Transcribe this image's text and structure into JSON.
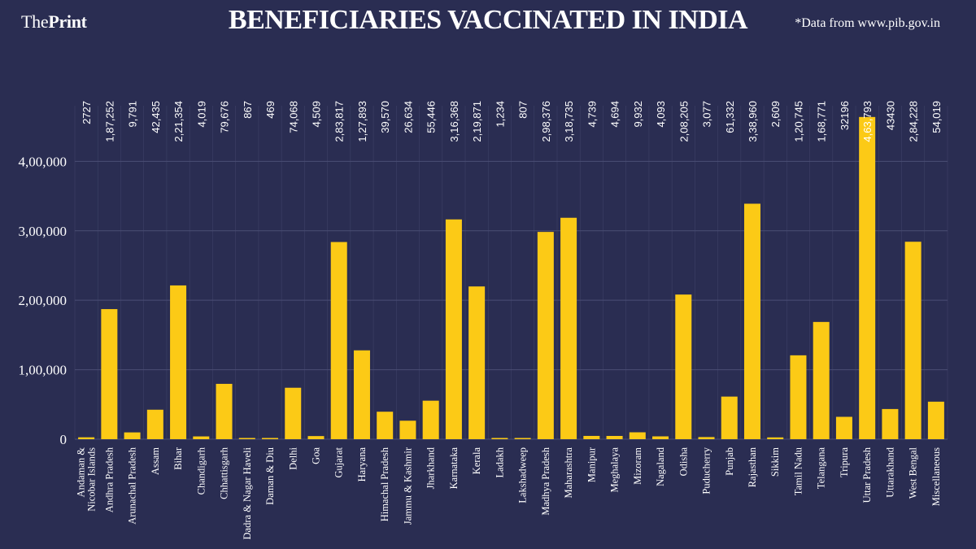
{
  "header": {
    "logo_light": "The",
    "logo_bold": "Print",
    "title": "BENEFICIARIES VACCINATED IN INDIA",
    "source": "*Data from www.pib.gov.in"
  },
  "colors": {
    "background": "#2a2d52",
    "bar": "#fcca16",
    "grid": "#4b4e75",
    "text": "#ffffff"
  },
  "chart_data": {
    "type": "bar",
    "title": "BENEFICIARIES VACCINATED IN INDIA",
    "xlabel": "",
    "ylabel": "",
    "ylim": [
      0,
      480000
    ],
    "yticks": [
      0,
      100000,
      200000,
      300000,
      400000
    ],
    "ytick_labels": [
      "0",
      "1,00,000",
      "2,00,000",
      "3,00,000",
      "4,00,000"
    ],
    "grid": true,
    "categories": [
      [
        "Andaman &",
        "Nicobar Islands"
      ],
      [
        "Andhra Pradesh"
      ],
      [
        "Arunachal Pradesh"
      ],
      [
        "Assam"
      ],
      [
        "Bihar"
      ],
      [
        "Chandigarh"
      ],
      [
        "Chhattisgarh"
      ],
      [
        "Dadra & Nagar Haveli"
      ],
      [
        "Daman & Diu"
      ],
      [
        "Delhi"
      ],
      [
        "Goa"
      ],
      [
        "Gujarat"
      ],
      [
        "Haryana"
      ],
      [
        "Himachal Pradesh"
      ],
      [
        "Jammu & Kashmir"
      ],
      [
        "Jharkhand"
      ],
      [
        "Karnataka"
      ],
      [
        "Kerala"
      ],
      [
        "Ladakh"
      ],
      [
        "Lakshadweep"
      ],
      [
        "Madhya Pradesh"
      ],
      [
        "Maharashtra"
      ],
      [
        "Manipur"
      ],
      [
        "Meghalaya"
      ],
      [
        "Mizoram"
      ],
      [
        "Nagaland"
      ],
      [
        "Odisha"
      ],
      [
        "Puducherry"
      ],
      [
        "Punjab"
      ],
      [
        "Rajasthan"
      ],
      [
        "Sikkim"
      ],
      [
        "Tamil Nadu"
      ],
      [
        "Telangana"
      ],
      [
        "Tripura"
      ],
      [
        "Uttar Pradesh"
      ],
      [
        "Uttarakhand"
      ],
      [
        "West Bengal"
      ],
      [
        "Miscellaneous"
      ]
    ],
    "values": [
      2727,
      187252,
      9791,
      42435,
      221354,
      4019,
      79676,
      867,
      469,
      74068,
      4509,
      283817,
      127893,
      39570,
      26634,
      55446,
      316368,
      219871,
      1234,
      807,
      298376,
      318735,
      4739,
      4694,
      9932,
      4093,
      208205,
      3077,
      61332,
      338960,
      2609,
      120745,
      168771,
      32196,
      463793,
      43430,
      284228,
      54019
    ],
    "value_labels": [
      "2727",
      "1,87,252",
      "9,791",
      "42,435",
      "2,21,354",
      "4,019",
      "79,676",
      "867",
      "469",
      "74,068",
      "4,509",
      "2,83,817",
      "1,27,893",
      "39,570",
      "26,634",
      "55,446",
      "3,16,368",
      "2,19,871",
      "1,234",
      "807",
      "2,98,376",
      "3,18,735",
      "4,739",
      "4,694",
      "9,932",
      "4,093",
      "2,08,205",
      "3,077",
      "61,332",
      "3,38,960",
      "2,609",
      "1,20,745",
      "1,68,771",
      "32196",
      "4,63,793",
      "43430",
      "2,84,228",
      "54,019"
    ]
  }
}
